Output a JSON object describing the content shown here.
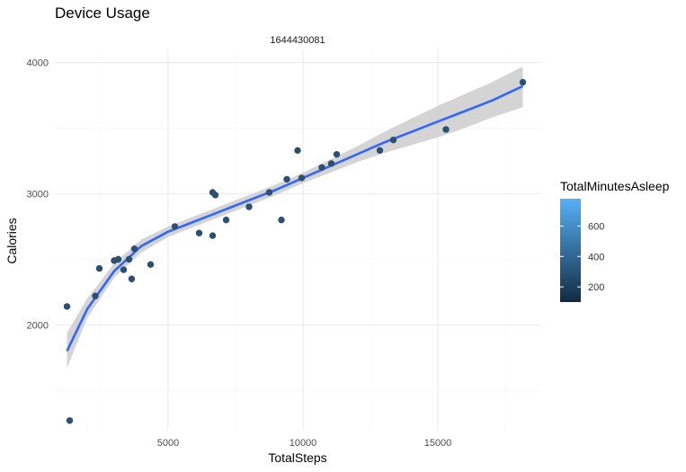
{
  "chart_data": {
    "type": "scatter",
    "title": "Device Usage",
    "facet_label": "1644430081",
    "xlabel": "TotalSteps",
    "ylabel": "Calories",
    "xlim": [
      800,
      18800
    ],
    "ylim": [
      1200,
      4100
    ],
    "x_ticks": [
      5000,
      10000,
      15000
    ],
    "y_ticks": [
      2000,
      3000,
      4000
    ],
    "grid": true,
    "legend": {
      "title": "TotalMinutesAsleep",
      "ticks": [
        200,
        400,
        600
      ],
      "range": [
        100,
        780
      ],
      "colors": [
        "#132B43",
        "#56B1F7"
      ],
      "placement": "right"
    },
    "points": [
      {
        "x": 1250,
        "y": 2140
      },
      {
        "x": 1350,
        "y": 1270
      },
      {
        "x": 2300,
        "y": 2220
      },
      {
        "x": 2450,
        "y": 2430
      },
      {
        "x": 3000,
        "y": 2490
      },
      {
        "x": 3150,
        "y": 2500
      },
      {
        "x": 3350,
        "y": 2420
      },
      {
        "x": 3550,
        "y": 2500
      },
      {
        "x": 3650,
        "y": 2350
      },
      {
        "x": 3750,
        "y": 2580
      },
      {
        "x": 4350,
        "y": 2460
      },
      {
        "x": 5250,
        "y": 2750
      },
      {
        "x": 6150,
        "y": 2700
      },
      {
        "x": 6650,
        "y": 3010
      },
      {
        "x": 6650,
        "y": 2680
      },
      {
        "x": 6750,
        "y": 2990
      },
      {
        "x": 7150,
        "y": 2800
      },
      {
        "x": 8000,
        "y": 2900
      },
      {
        "x": 8750,
        "y": 3010
      },
      {
        "x": 9200,
        "y": 2800
      },
      {
        "x": 9400,
        "y": 3110
      },
      {
        "x": 9800,
        "y": 3330
      },
      {
        "x": 9950,
        "y": 3120
      },
      {
        "x": 10700,
        "y": 3200
      },
      {
        "x": 11050,
        "y": 3230
      },
      {
        "x": 11250,
        "y": 3300
      },
      {
        "x": 12850,
        "y": 3330
      },
      {
        "x": 13350,
        "y": 3410
      },
      {
        "x": 15300,
        "y": 3490
      },
      {
        "x": 18150,
        "y": 3850
      }
    ],
    "smooth": {
      "color": "#3366FF",
      "band_color": "#cccccc",
      "x": [
        1250,
        2000,
        3000,
        4000,
        5000,
        6000,
        7000,
        8000,
        9000,
        10000,
        11000,
        12000,
        13000,
        14000,
        15000,
        16000,
        17000,
        18150
      ],
      "y": [
        1800,
        2120,
        2410,
        2600,
        2710,
        2790,
        2870,
        2950,
        3030,
        3120,
        3210,
        3300,
        3390,
        3470,
        3550,
        3630,
        3710,
        3820
      ],
      "lower": [
        1670,
        2050,
        2360,
        2550,
        2670,
        2750,
        2830,
        2910,
        2990,
        3080,
        3160,
        3240,
        3310,
        3370,
        3430,
        3500,
        3580,
        3660
      ],
      "upper": [
        1940,
        2200,
        2470,
        2650,
        2750,
        2830,
        2910,
        2990,
        3070,
        3160,
        3260,
        3360,
        3470,
        3570,
        3670,
        3760,
        3850,
        3970
      ]
    }
  }
}
